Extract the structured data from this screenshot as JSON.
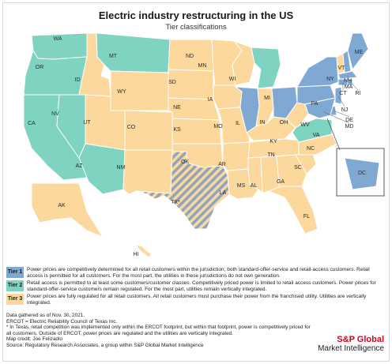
{
  "title": "Electric industry restructuring in the US",
  "subtitle": "Tier classifications",
  "colors": {
    "tier1": "#7fa9d3",
    "tier2": "#7fd3c1",
    "tier3": "#fcd89c",
    "ercot_stripe": "#8fa5bf",
    "border": "#ffffff",
    "brand": "#d6001c"
  },
  "states": [
    {
      "abbr": "WA",
      "tier": "tier2"
    },
    {
      "abbr": "OR",
      "tier": "tier2"
    },
    {
      "abbr": "CA",
      "tier": "tier2"
    },
    {
      "abbr": "NV",
      "tier": "tier2"
    },
    {
      "abbr": "ID",
      "tier": "tier3"
    },
    {
      "abbr": "MT",
      "tier": "tier2"
    },
    {
      "abbr": "WY",
      "tier": "tier3"
    },
    {
      "abbr": "UT",
      "tier": "tier3"
    },
    {
      "abbr": "AZ",
      "tier": "tier2"
    },
    {
      "abbr": "CO",
      "tier": "tier3"
    },
    {
      "abbr": "NM",
      "tier": "tier3"
    },
    {
      "abbr": "ND",
      "tier": "tier3"
    },
    {
      "abbr": "SD",
      "tier": "tier3"
    },
    {
      "abbr": "NE",
      "tier": "tier3"
    },
    {
      "abbr": "KS",
      "tier": "tier3"
    },
    {
      "abbr": "OK",
      "tier": "tier3"
    },
    {
      "abbr": "TX",
      "tier": "ercot"
    },
    {
      "abbr": "MN",
      "tier": "tier3"
    },
    {
      "abbr": "IA",
      "tier": "tier3"
    },
    {
      "abbr": "MO",
      "tier": "tier3"
    },
    {
      "abbr": "AR",
      "tier": "tier3"
    },
    {
      "abbr": "LA",
      "tier": "tier3"
    },
    {
      "abbr": "WI",
      "tier": "tier3"
    },
    {
      "abbr": "IL",
      "tier": "tier1"
    },
    {
      "abbr": "MI",
      "tier": "tier2"
    },
    {
      "abbr": "IN",
      "tier": "tier3"
    },
    {
      "abbr": "KY",
      "tier": "tier3"
    },
    {
      "abbr": "TN",
      "tier": "tier3"
    },
    {
      "abbr": "MS",
      "tier": "tier3"
    },
    {
      "abbr": "AL",
      "tier": "tier3"
    },
    {
      "abbr": "OH",
      "tier": "tier1"
    },
    {
      "abbr": "GA",
      "tier": "tier3"
    },
    {
      "abbr": "FL",
      "tier": "tier3"
    },
    {
      "abbr": "SC",
      "tier": "tier3"
    },
    {
      "abbr": "NC",
      "tier": "tier3"
    },
    {
      "abbr": "VA",
      "tier": "tier2"
    },
    {
      "abbr": "WV",
      "tier": "tier3"
    },
    {
      "abbr": "PA",
      "tier": "tier1"
    },
    {
      "abbr": "NY",
      "tier": "tier1"
    },
    {
      "abbr": "VT",
      "tier": "tier3"
    },
    {
      "abbr": "NH",
      "tier": "tier1"
    },
    {
      "abbr": "ME",
      "tier": "tier1"
    },
    {
      "abbr": "MA",
      "tier": "tier1"
    },
    {
      "abbr": "CT",
      "tier": "tier1"
    },
    {
      "abbr": "RI",
      "tier": "tier1"
    },
    {
      "abbr": "NJ",
      "tier": "tier1"
    },
    {
      "abbr": "DE",
      "tier": "tier1"
    },
    {
      "abbr": "MD",
      "tier": "tier1"
    },
    {
      "abbr": "DC",
      "tier": "tier1"
    },
    {
      "abbr": "AK",
      "tier": "tier3"
    },
    {
      "abbr": "HI",
      "tier": "tier3"
    }
  ],
  "legend": [
    {
      "tier": "tier1",
      "label": "Tier 1",
      "text": "Power prices are competitively determined for all retail customers within the jurisdiction; both standard-offer-service and retail-access customers. Retail access is permitted for all customers. For the most part, the utilities in these jurisdictions do not own generation."
    },
    {
      "tier": "tier2",
      "label": "Tier 2",
      "text": "Retail access is permitted to at least some customers/customer classes. Competitively priced power is limited to retail access customers. Power prices for standard-offer-service customers remain regulated. For the most part, utilities remain vertically integrated."
    },
    {
      "tier": "tier3",
      "label": "Tier 3",
      "text": "Power prices are fully regulated for all retail customers. All retail customers must purchase their power from the franchised utility. Utilities are vertically integrated."
    }
  ],
  "notes": [
    "Data gathered as of Nov. 30, 2021.",
    "ERCOT = Electric Reliability Council of Texas Inc.",
    "* In Texas, retail competition was implemented only within the ERCOT footprint, but within that footprint, power is competitively priced for",
    "all customers. Outside of ERCOT, power prices are regulated and the utilities are vertically integrated.",
    "Map credit: Joe Felizadio",
    "Source: Regulatory Research Associates, a group within S&P Global Market Intelligence"
  ],
  "brand": {
    "line1": "S&P Global",
    "line2": "Market Intelligence"
  }
}
